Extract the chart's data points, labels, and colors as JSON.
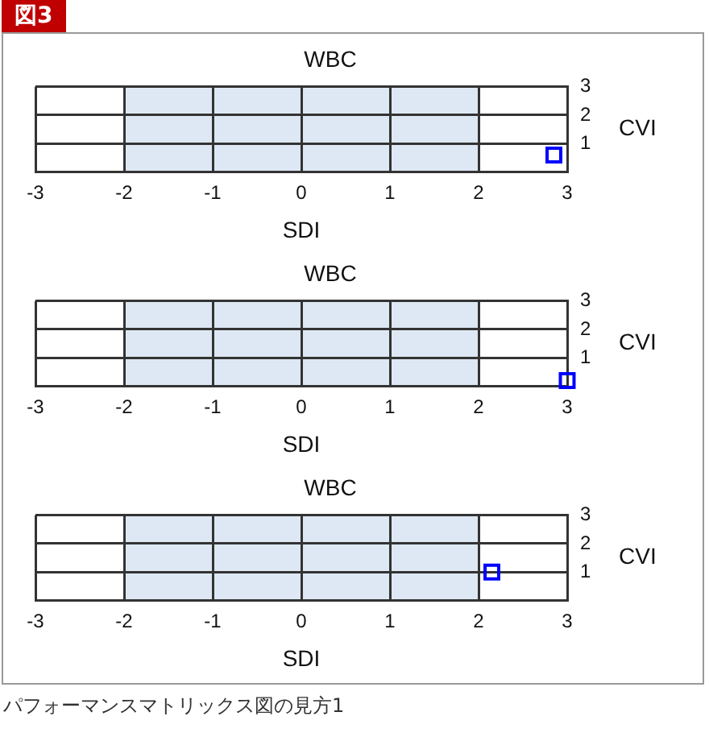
{
  "chart_data": [
    {
      "type": "scatter",
      "title": "WBC",
      "xlabel": "SDI",
      "ylabel": "CVI",
      "annotations": [
        "図3"
      ],
      "x": [
        2.85
      ],
      "values": [
        0.6
      ],
      "color": "#0000ff",
      "marker": "square",
      "xlim": [
        -3,
        3
      ],
      "xticks": [
        -3,
        -2,
        -1,
        0,
        1,
        2,
        3
      ],
      "ylim": [
        0,
        3
      ],
      "yticks": [
        1,
        2,
        3
      ],
      "bands": [
        {
          "axis": "x",
          "from": -2,
          "to": 2,
          "label": null,
          "color": "#dde8f4"
        }
      ],
      "grid": true,
      "legend": false
    },
    {
      "type": "scatter",
      "title": "WBC",
      "xlabel": "SDI",
      "ylabel": "CVI",
      "x": [
        3.0
      ],
      "values": [
        0.2
      ],
      "color": "#0000ff",
      "marker": "square",
      "xlim": [
        -3,
        3
      ],
      "xticks": [
        -3,
        -2,
        -1,
        0,
        1,
        2,
        3
      ],
      "ylim": [
        0,
        3
      ],
      "yticks": [
        1,
        2,
        3
      ],
      "bands": [
        {
          "axis": "x",
          "from": -2,
          "to": 2,
          "label": null,
          "color": "#dde8f4"
        }
      ],
      "grid": true,
      "legend": false
    },
    {
      "type": "scatter",
      "title": "WBC",
      "xlabel": "SDI",
      "ylabel": "CVI",
      "annotations": [
        "パフォーマンスマトリックス図の見方1"
      ],
      "x": [
        2.15
      ],
      "values": [
        1.0
      ],
      "color": "#0000ff",
      "marker": "square",
      "xlim": [
        -3,
        3
      ],
      "xticks": [
        -3,
        -2,
        -1,
        0,
        1,
        2,
        3
      ],
      "ylim": [
        0,
        3
      ],
      "yticks": [
        1,
        2,
        3
      ],
      "bands": [
        {
          "axis": "x",
          "from": -2,
          "to": 2,
          "label": null,
          "color": "#dde8f4"
        }
      ],
      "grid": true,
      "legend": false
    }
  ]
}
